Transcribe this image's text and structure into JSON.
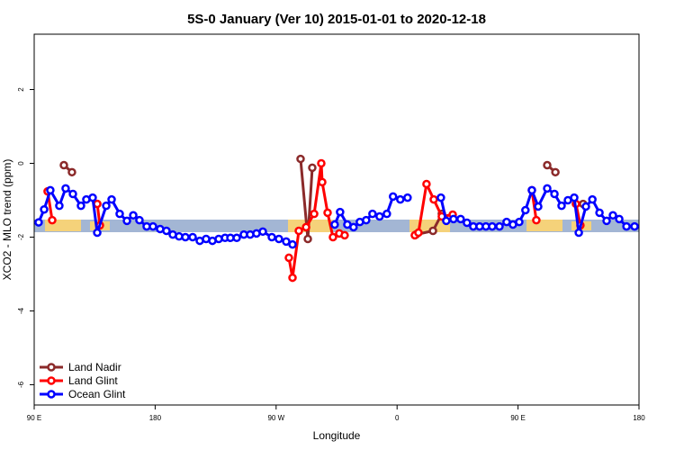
{
  "chart_data": {
    "type": "line",
    "title": "5S-0 January (Ver 10)   2015-01-01 to 2020-12-18",
    "x_label": "Longitude",
    "y_label": "XCO2 - MLO trend (ppm)",
    "xlim": [
      90,
      540
    ],
    "xticks": [
      {
        "value": 90,
        "label": "90 E"
      },
      180,
      {
        "value": 270,
        "label": "90 W"
      },
      {
        "value": 360,
        "label": "0"
      },
      {
        "value": 450,
        "label": "90 E"
      },
      {
        "value": 540,
        "label": "180"
      }
    ],
    "ylim": [
      -6.55,
      3.5
    ],
    "yticks": [
      -6,
      -4,
      -2,
      0,
      2
    ],
    "legend": "bottom-left",
    "series": [
      {
        "name": "Land Nadir",
        "color": "#8b2a2a",
        "x": [
          112.1,
          118.1,
          null,
          136.9,
          null,
          288.2,
          293.6,
          296.9,
          null,
          374,
          386.7,
          393.3,
          null,
          471.7,
          477.8,
          null,
          498.4
        ],
        "values": [
          -0.05,
          -0.24,
          null,
          -1.1,
          null,
          0.12,
          -2.05,
          -0.12,
          null,
          -1.93,
          -1.83,
          -1.37,
          null,
          -0.05,
          -0.24,
          null,
          -1.1
        ]
      },
      {
        "name": "Land Glint",
        "color": "#ff0000",
        "x": [
          100,
          103.4,
          null,
          136.9,
          138.9,
          null,
          279.5,
          282.2,
          286.9,
          292.3,
          298.3,
          303.6,
          304.3,
          308.3,
          312.3,
          317,
          321,
          null,
          373.2,
          375.9,
          381.9,
          387.3,
          393.3,
          401.4,
          null,
          460.3,
          463.6,
          null,
          493.1,
          496.4
        ],
        "values": [
          -0.76,
          -1.54,
          null,
          -1.1,
          -1.68,
          null,
          -2.56,
          -3.1,
          -1.83,
          -1.73,
          -1.37,
          0,
          -0.51,
          -1.34,
          -2.0,
          -1.9,
          -1.95,
          null,
          -1.95,
          -1.88,
          -0.56,
          -0.98,
          -1.44,
          -1.39,
          null,
          -0.73,
          -1.54,
          null,
          -1.1,
          -1.68
        ]
      },
      {
        "name": "Ocean Glint",
        "color": "#0000ff",
        "x": [
          93.3,
          97.4,
          102,
          108.7,
          113.4,
          118.8,
          124.8,
          128.8,
          133.5,
          136.9,
          143.6,
          147.6,
          153.6,
          159,
          163.7,
          168.3,
          173.7,
          178.4,
          183.7,
          188.4,
          193.1,
          197.8,
          202.5,
          207.9,
          213.2,
          217.9,
          222.6,
          227.3,
          232,
          236,
          240.7,
          246,
          250.7,
          255.4,
          260.1,
          266.8,
          272.1,
          277.5,
          282.2,
          null,
          313.6,
          317.6,
          323,
          327.6,
          332.3,
          337,
          341.7,
          347,
          352.4,
          357,
          362.4,
          367.8,
          null,
          392.6,
          396.6,
          402,
          407.3,
          412,
          416.7,
          421.4,
          426.1,
          430.8,
          436.2,
          441.5,
          446.2,
          450.9,
          455.5,
          460.3,
          465,
          471.7,
          477.1,
          482.4,
          487.1,
          491.8,
          495.2,
          500.5,
          505.3,
          510.6,
          515.9,
          520.6,
          525.3,
          530.7,
          536.7
        ],
        "values": [
          -1.6,
          -1.25,
          -0.73,
          -1.15,
          -0.68,
          -0.83,
          -1.15,
          -0.98,
          -0.93,
          -1.88,
          -1.15,
          -0.98,
          -1.37,
          -1.56,
          -1.41,
          -1.54,
          -1.71,
          -1.71,
          -1.78,
          -1.83,
          -1.93,
          -1.98,
          -2.0,
          -2.0,
          -2.1,
          -2.05,
          -2.1,
          -2.05,
          -2.02,
          -2.02,
          -2.02,
          -1.93,
          -1.93,
          -1.9,
          -1.85,
          -2.0,
          -2.05,
          -2.12,
          -2.2,
          null,
          -1.66,
          -1.32,
          -1.66,
          -1.73,
          -1.59,
          -1.54,
          -1.37,
          -1.44,
          -1.37,
          -0.9,
          -0.98,
          -0.93,
          null,
          -0.93,
          -1.56,
          -1.51,
          -1.51,
          -1.61,
          -1.71,
          -1.71,
          -1.71,
          -1.71,
          -1.71,
          -1.59,
          -1.66,
          -1.59,
          -1.27,
          -0.73,
          -1.17,
          -0.68,
          -0.83,
          -1.15,
          -1.0,
          -0.93,
          -1.88,
          -1.17,
          -0.98,
          -1.34,
          -1.56,
          -1.41,
          -1.51,
          -1.71,
          -1.71
        ]
      }
    ]
  }
}
